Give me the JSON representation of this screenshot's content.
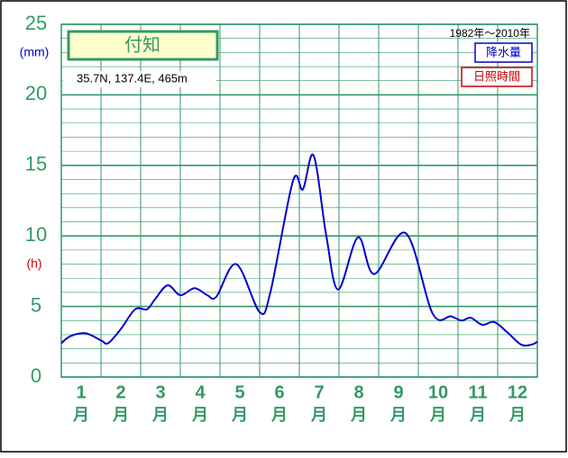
{
  "chart_data": {
    "type": "line",
    "title": "付知",
    "subtitle": "35.7N,  137.4E,  465m",
    "period": "1982年〜2010年",
    "y_unit_left": "(mm)",
    "y_unit_right": "(h)",
    "legend": [
      {
        "name": "降水量",
        "color": "#0000cc"
      },
      {
        "name": "日照時間",
        "color": "#cc0000"
      }
    ],
    "categories": [
      "1",
      "2",
      "3",
      "4",
      "5",
      "6",
      "7",
      "8",
      "9",
      "10",
      "11",
      "12"
    ],
    "month_suffix": "月",
    "series": [
      {
        "name": "降水量",
        "color": "#0000cc",
        "x": [
          0,
          0.23,
          0.61,
          1.0,
          1.18,
          1.5,
          1.86,
          2.16,
          2.36,
          2.68,
          3.0,
          3.36,
          3.68,
          3.91,
          4.41,
          5.0,
          5.27,
          5.84,
          6.09,
          6.36,
          6.68,
          6.98,
          7.48,
          7.89,
          8.68,
          9.36,
          9.82,
          10.09,
          10.32,
          10.61,
          10.91,
          11.23,
          11.59,
          11.86,
          12
        ],
        "values": [
          2.4,
          2.9,
          3.1,
          2.6,
          2.4,
          3.4,
          4.8,
          4.8,
          5.5,
          6.5,
          5.8,
          6.3,
          5.8,
          5.7,
          8.0,
          4.6,
          6.0,
          13.9,
          13.3,
          15.7,
          10,
          6.2,
          9.9,
          7.3,
          10.2,
          4.5,
          4.3,
          4.0,
          4.2,
          3.7,
          3.9,
          3.2,
          2.3,
          2.3,
          2.5
        ]
      }
    ],
    "xlim": [
      0,
      12
    ],
    "xticks": [
      0,
      1,
      2,
      3,
      4,
      5,
      6,
      7,
      8,
      9,
      10,
      11,
      12
    ],
    "ylim": [
      0,
      25
    ],
    "yticks": [
      0,
      5,
      10,
      15,
      20,
      25
    ],
    "minor_grid_step": 1,
    "grid": true
  }
}
